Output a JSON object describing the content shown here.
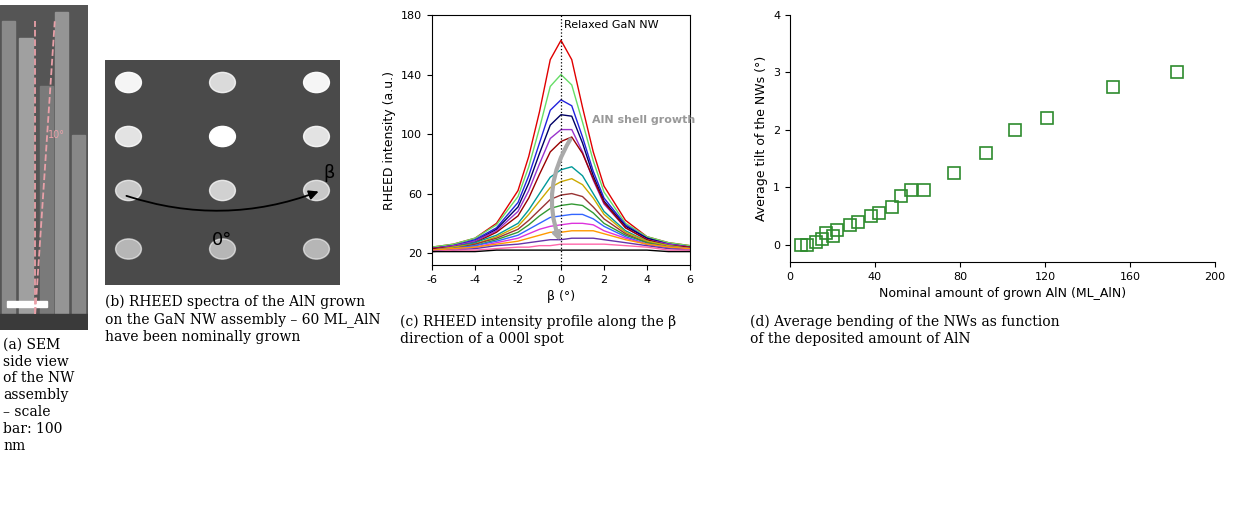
{
  "images": [
    {
      "caption": "(a) SEM side view of the NW assembly – scale bar: 100 nm",
      "annotations": [
        "10°"
      ]
    },
    {
      "caption": "(b) RHEED spectra of the AlN grown on the GaN NW assembly – 60 ML_AlN have been nominally grown",
      "annotations": [
        "0°",
        "β"
      ]
    }
  ],
  "chart_data": [
    {
      "type": "line",
      "caption": "(c) RHEED intensity profile along the β direction of a 000l spot",
      "x_label": "β (°)",
      "y_label": "RHEED intensity (a.u.)",
      "annotations": [
        "Relaxed GaN NW",
        "AlN shell growth"
      ],
      "relaxed_beta": 0,
      "x": [
        -6,
        -5,
        -4,
        -3,
        -2,
        -1.5,
        -1,
        -0.5,
        0,
        0.5,
        1,
        1.5,
        2,
        3,
        4,
        5,
        6
      ],
      "series": [
        {
          "color": "#e00000",
          "values": [
            24,
            26,
            30,
            40,
            62,
            85,
            115,
            150,
            163,
            150,
            118,
            88,
            65,
            42,
            31,
            27,
            25
          ]
        },
        {
          "color": "#66dd66",
          "values": [
            24,
            26,
            30,
            39,
            58,
            78,
            104,
            132,
            140,
            133,
            108,
            82,
            61,
            40,
            31,
            27,
            25
          ]
        },
        {
          "color": "#2222dd",
          "values": [
            23,
            25,
            29,
            37,
            54,
            72,
            94,
            116,
            123,
            119,
            98,
            75,
            57,
            39,
            30,
            26,
            24
          ]
        },
        {
          "color": "#000066",
          "values": [
            23,
            25,
            28,
            36,
            51,
            67,
            87,
            106,
            113,
            112,
            94,
            72,
            55,
            38,
            30,
            26,
            24
          ]
        },
        {
          "color": "#9933cc",
          "values": [
            23,
            25,
            28,
            35,
            48,
            62,
            80,
            97,
            103,
            103,
            88,
            69,
            53,
            37,
            29,
            26,
            24
          ]
        },
        {
          "color": "#990000",
          "values": [
            23,
            24,
            27,
            34,
            45,
            57,
            73,
            88,
            95,
            98,
            87,
            70,
            54,
            37,
            29,
            25,
            24
          ]
        },
        {
          "color": "#009999",
          "values": [
            22,
            24,
            27,
            32,
            40,
            49,
            60,
            71,
            76,
            78,
            72,
            60,
            48,
            35,
            28,
            25,
            23
          ]
        },
        {
          "color": "#ccaa00",
          "values": [
            22,
            24,
            26,
            31,
            38,
            46,
            55,
            64,
            68,
            70,
            66,
            57,
            46,
            34,
            28,
            25,
            23
          ]
        },
        {
          "color": "#993333",
          "values": [
            22,
            23,
            26,
            30,
            36,
            42,
            49,
            56,
            59,
            60,
            58,
            51,
            43,
            33,
            27,
            24,
            23
          ]
        },
        {
          "color": "#339933",
          "values": [
            22,
            23,
            25,
            29,
            34,
            39,
            45,
            50,
            52,
            53,
            52,
            47,
            40,
            32,
            27,
            24,
            23
          ]
        },
        {
          "color": "#3366ff",
          "values": [
            22,
            23,
            25,
            28,
            32,
            36,
            40,
            44,
            45,
            46,
            46,
            43,
            38,
            31,
            26,
            24,
            23
          ]
        },
        {
          "color": "#dd33dd",
          "values": [
            22,
            23,
            24,
            27,
            30,
            33,
            36,
            38,
            39,
            40,
            40,
            39,
            35,
            30,
            26,
            24,
            23
          ]
        },
        {
          "color": "#ff9900",
          "values": [
            22,
            23,
            24,
            26,
            28,
            30,
            32,
            34,
            34,
            35,
            35,
            35,
            33,
            29,
            26,
            24,
            23
          ]
        },
        {
          "color": "#6633aa",
          "values": [
            21,
            22,
            23,
            25,
            26,
            27,
            28,
            29,
            29,
            30,
            30,
            30,
            29,
            27,
            25,
            23,
            22
          ]
        },
        {
          "color": "#ff66aa",
          "values": [
            21,
            22,
            22,
            23,
            24,
            24,
            25,
            25,
            26,
            26,
            26,
            26,
            26,
            25,
            24,
            22,
            22
          ]
        },
        {
          "color": "#000000",
          "values": [
            21,
            21,
            21,
            22,
            22,
            22,
            22,
            22,
            22,
            22,
            22,
            22,
            22,
            22,
            22,
            21,
            21
          ]
        }
      ],
      "xlim": [
        -6,
        6
      ],
      "xticks": [
        -6,
        -4,
        -2,
        0,
        2,
        4,
        6
      ],
      "ylim": [
        12,
        180
      ],
      "yticks": [
        20,
        60,
        100,
        140,
        180
      ]
    },
    {
      "type": "scatter",
      "caption": "(d) Average bending of the NWs as function of the deposited amount of AlN",
      "x_label": "Nominal amount of grown AlN (ML_AlN)",
      "y_label": "Average tilt of the NWs (°)",
      "marker": "square",
      "color": "#2e8b2e",
      "x": [
        5,
        8,
        12,
        15,
        17,
        20,
        22,
        28,
        32,
        38,
        42,
        48,
        52,
        57,
        63,
        77,
        92,
        106,
        121,
        152,
        182
      ],
      "values": [
        0,
        0,
        0.05,
        0.1,
        0.2,
        0.15,
        0.25,
        0.35,
        0.4,
        0.5,
        0.55,
        0.65,
        0.85,
        0.95,
        0.95,
        1.25,
        1.6,
        2.0,
        2.2,
        2.75,
        3.0
      ],
      "xlim": [
        0,
        200
      ],
      "xticks": [
        0,
        40,
        80,
        120,
        160,
        200
      ],
      "ylim": [
        -0.3,
        4
      ],
      "yticks": [
        0,
        1,
        2,
        3,
        4
      ]
    }
  ]
}
